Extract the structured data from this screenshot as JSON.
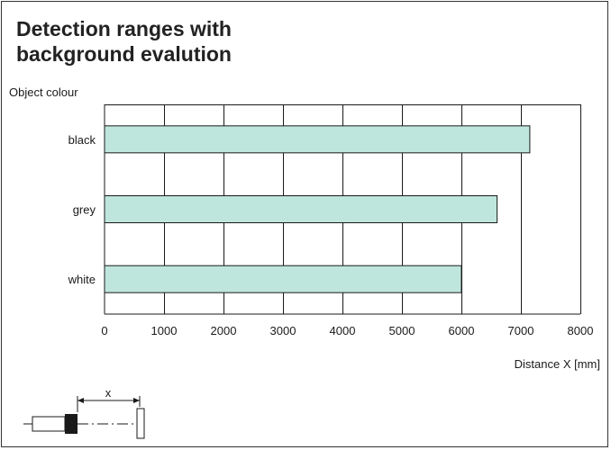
{
  "chart_data": {
    "type": "bar",
    "orientation": "horizontal",
    "title": "Detection ranges with\nbackground evalution",
    "ylabel": "Object colour",
    "xlabel": "Distance X [mm]",
    "categories": [
      "black",
      "grey",
      "white"
    ],
    "values": [
      7150,
      6600,
      6000
    ],
    "xlim": [
      0,
      8000
    ],
    "x_ticks": [
      0,
      1000,
      2000,
      3000,
      4000,
      5000,
      6000,
      7000,
      8000
    ],
    "grid": true,
    "bar_color": "#bfe6dd"
  },
  "diagram": {
    "label": "x"
  }
}
